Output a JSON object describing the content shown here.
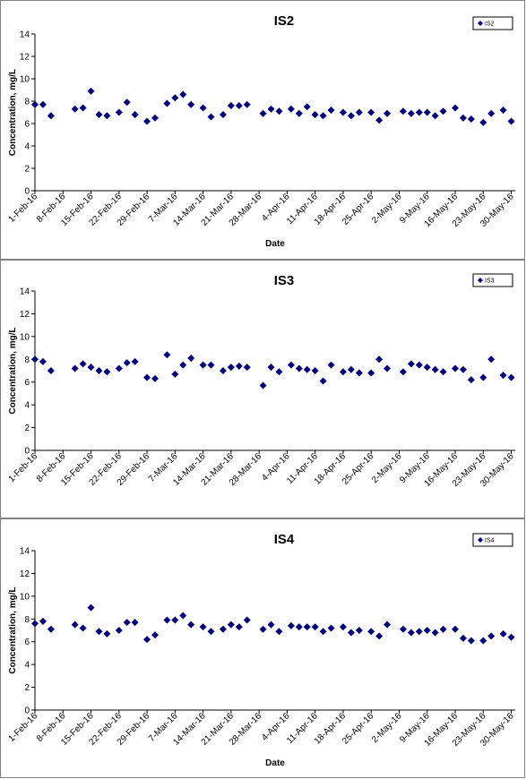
{
  "chart_data": [
    {
      "type": "scatter",
      "title": "IS2",
      "xlabel": "Date",
      "ylabel": "Concentration, mg/L",
      "ylim": [
        0,
        14
      ],
      "yticks": [
        "0",
        "2",
        "4",
        "6",
        "8",
        "10",
        "12",
        "14"
      ],
      "xlim": [
        "2016-02-01",
        "2016-05-31"
      ],
      "xticks": [
        "1-Feb-16",
        "8-Feb-16",
        "15-Feb-16",
        "22-Feb-16",
        "29-Feb-16",
        "7-Mar-16",
        "14-Mar-16",
        "21-Mar-16",
        "28-Mar-16",
        "4-Apr-16",
        "11-Apr-16",
        "18-Apr-16",
        "25-Apr-16",
        "2-May-16",
        "9-May-16",
        "16-May-16",
        "23-May-16",
        "30-May-16"
      ],
      "grid": false,
      "legend_position": "top-right",
      "marker_color": "#00007f",
      "series": [
        {
          "name": "IS2",
          "x": [
            "2016-02-01",
            "2016-02-03",
            "2016-02-05",
            "2016-02-11",
            "2016-02-13",
            "2016-02-15",
            "2016-02-17",
            "2016-02-19",
            "2016-02-22",
            "2016-02-24",
            "2016-02-26",
            "2016-02-29",
            "2016-03-02",
            "2016-03-05",
            "2016-03-07",
            "2016-03-09",
            "2016-03-11",
            "2016-03-14",
            "2016-03-16",
            "2016-03-19",
            "2016-03-21",
            "2016-03-23",
            "2016-03-25",
            "2016-03-29",
            "2016-03-31",
            "2016-04-02",
            "2016-04-05",
            "2016-04-07",
            "2016-04-09",
            "2016-04-11",
            "2016-04-13",
            "2016-04-15",
            "2016-04-18",
            "2016-04-20",
            "2016-04-22",
            "2016-04-25",
            "2016-04-27",
            "2016-04-29",
            "2016-05-03",
            "2016-05-05",
            "2016-05-07",
            "2016-05-09",
            "2016-05-11",
            "2016-05-13",
            "2016-05-16",
            "2016-05-18",
            "2016-05-20",
            "2016-05-23",
            "2016-05-25",
            "2016-05-28",
            "2016-05-30"
          ],
          "y": [
            7.7,
            7.7,
            6.7,
            7.3,
            7.4,
            8.9,
            6.8,
            6.7,
            7.0,
            7.9,
            6.8,
            6.2,
            6.5,
            7.8,
            8.3,
            8.6,
            7.7,
            7.4,
            6.6,
            6.8,
            7.6,
            7.6,
            7.7,
            6.9,
            7.3,
            7.1,
            7.3,
            6.9,
            7.5,
            6.8,
            6.7,
            7.2,
            7.0,
            6.7,
            7.0,
            7.0,
            6.3,
            6.9,
            7.1,
            6.9,
            7.0,
            7.0,
            6.7,
            7.1,
            7.4,
            6.5,
            6.4,
            6.1,
            6.9,
            7.2,
            6.2
          ]
        }
      ]
    },
    {
      "type": "scatter",
      "title": "IS3",
      "xlabel": "",
      "ylabel": "Concentration, mg/L",
      "ylim": [
        0,
        14
      ],
      "yticks": [
        "0",
        "2",
        "4",
        "6",
        "8",
        "10",
        "12",
        "14"
      ],
      "xlim": [
        "2016-02-01",
        "2016-05-31"
      ],
      "xticks": [
        "1-Feb-16",
        "8-Feb-16",
        "15-Feb-16",
        "22-Feb-16",
        "29-Feb-16",
        "7-Mar-16",
        "14-Mar-16",
        "21-Mar-16",
        "28-Mar-16",
        "4-Apr-16",
        "11-Apr-16",
        "18-Apr-16",
        "25-Apr-16",
        "2-May-16",
        "9-May-16",
        "16-May-16",
        "23-May-16",
        "30-May-16"
      ],
      "grid": false,
      "legend_position": "top-right",
      "marker_color": "#00007f",
      "series": [
        {
          "name": "IS3",
          "x": [
            "2016-02-01",
            "2016-02-03",
            "2016-02-05",
            "2016-02-11",
            "2016-02-13",
            "2016-02-15",
            "2016-02-17",
            "2016-02-19",
            "2016-02-22",
            "2016-02-24",
            "2016-02-26",
            "2016-02-29",
            "2016-03-02",
            "2016-03-05",
            "2016-03-07",
            "2016-03-09",
            "2016-03-11",
            "2016-03-14",
            "2016-03-16",
            "2016-03-19",
            "2016-03-21",
            "2016-03-23",
            "2016-03-25",
            "2016-03-29",
            "2016-03-31",
            "2016-04-02",
            "2016-04-05",
            "2016-04-07",
            "2016-04-09",
            "2016-04-11",
            "2016-04-13",
            "2016-04-15",
            "2016-04-18",
            "2016-04-20",
            "2016-04-22",
            "2016-04-25",
            "2016-04-27",
            "2016-04-29",
            "2016-05-03",
            "2016-05-05",
            "2016-05-07",
            "2016-05-09",
            "2016-05-11",
            "2016-05-13",
            "2016-05-16",
            "2016-05-18",
            "2016-05-20",
            "2016-05-23",
            "2016-05-25",
            "2016-05-28",
            "2016-05-30"
          ],
          "y": [
            8.0,
            7.8,
            7.0,
            7.2,
            7.6,
            7.3,
            7.0,
            6.9,
            7.2,
            7.7,
            7.8,
            6.4,
            6.3,
            8.4,
            6.7,
            7.5,
            8.1,
            7.5,
            7.5,
            7.0,
            7.3,
            7.4,
            7.3,
            5.7,
            7.3,
            6.9,
            7.5,
            7.2,
            7.1,
            7.0,
            6.1,
            7.5,
            6.9,
            7.1,
            6.8,
            6.8,
            8.0,
            7.2,
            6.9,
            7.6,
            7.5,
            7.3,
            7.1,
            6.9,
            7.2,
            7.1,
            6.2,
            6.4,
            8.0,
            6.6,
            6.4
          ]
        }
      ]
    },
    {
      "type": "scatter",
      "title": "IS4",
      "xlabel": "Date",
      "ylabel": "Concentration, mg/L",
      "ylim": [
        0,
        14
      ],
      "yticks": [
        "0",
        "2",
        "4",
        "6",
        "8",
        "10",
        "12",
        "14"
      ],
      "xlim": [
        "2016-02-01",
        "2016-05-31"
      ],
      "xticks": [
        "1-Feb-16",
        "8-Feb-16",
        "15-Feb-16",
        "22-Feb-16",
        "29-Feb-16",
        "7-Mar-16",
        "14-Mar-16",
        "21-Mar-16",
        "28-Mar-16",
        "4-Apr-16",
        "11-Apr-16",
        "18-Apr-16",
        "25-Apr-16",
        "2-May-16",
        "9-May-16",
        "16-May-16",
        "23-May-16",
        "30-May-16"
      ],
      "grid": false,
      "legend_position": "top-right",
      "marker_color": "#00007f",
      "series": [
        {
          "name": "IS4",
          "x": [
            "2016-02-01",
            "2016-02-03",
            "2016-02-05",
            "2016-02-11",
            "2016-02-13",
            "2016-02-15",
            "2016-02-17",
            "2016-02-19",
            "2016-02-22",
            "2016-02-24",
            "2016-02-26",
            "2016-02-29",
            "2016-03-02",
            "2016-03-05",
            "2016-03-07",
            "2016-03-09",
            "2016-03-11",
            "2016-03-14",
            "2016-03-16",
            "2016-03-19",
            "2016-03-21",
            "2016-03-23",
            "2016-03-25",
            "2016-03-29",
            "2016-03-31",
            "2016-04-02",
            "2016-04-05",
            "2016-04-07",
            "2016-04-09",
            "2016-04-11",
            "2016-04-13",
            "2016-04-15",
            "2016-04-18",
            "2016-04-20",
            "2016-04-22",
            "2016-04-25",
            "2016-04-27",
            "2016-04-29",
            "2016-05-03",
            "2016-05-05",
            "2016-05-07",
            "2016-05-09",
            "2016-05-11",
            "2016-05-13",
            "2016-05-16",
            "2016-05-18",
            "2016-05-20",
            "2016-05-23",
            "2016-05-25",
            "2016-05-28",
            "2016-05-30"
          ],
          "y": [
            7.6,
            7.8,
            7.1,
            7.5,
            7.2,
            9.0,
            6.9,
            6.7,
            7.0,
            7.7,
            7.7,
            6.2,
            6.6,
            7.9,
            7.9,
            8.3,
            7.5,
            7.3,
            6.9,
            7.1,
            7.5,
            7.3,
            7.9,
            7.1,
            7.5,
            6.9,
            7.4,
            7.3,
            7.3,
            7.3,
            6.9,
            7.2,
            7.3,
            6.8,
            7.0,
            6.9,
            6.5,
            7.5,
            7.1,
            6.8,
            6.9,
            7.0,
            6.8,
            7.1,
            7.1,
            6.3,
            6.1,
            6.1,
            6.5,
            6.7,
            6.4
          ]
        }
      ]
    }
  ]
}
